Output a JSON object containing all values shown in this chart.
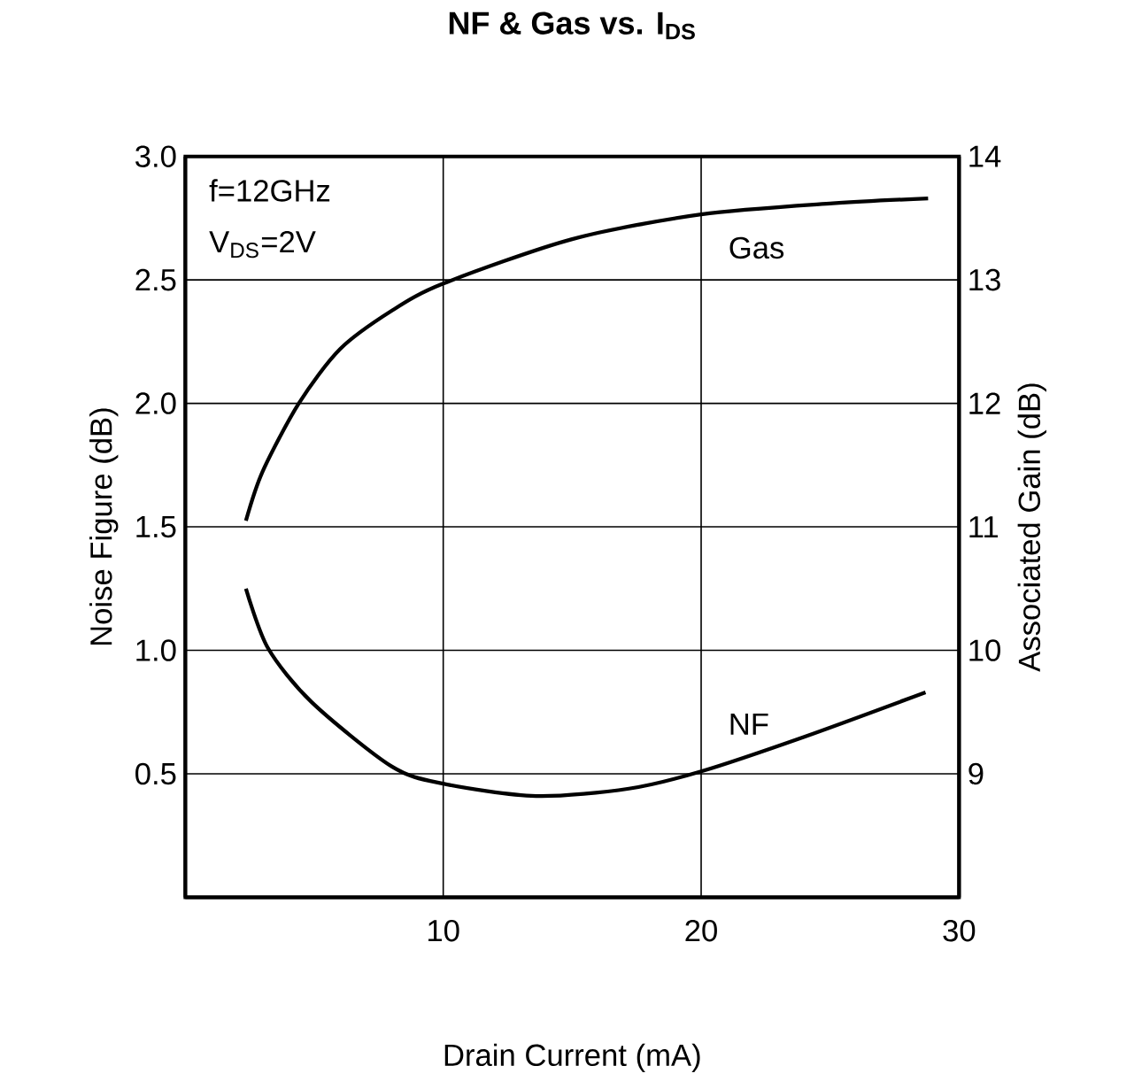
{
  "chart_data": {
    "type": "line",
    "title": "NF & Gas vs. I$_{DS}$",
    "xlabel": "Drain Current (mA)",
    "ylabel": "Noise Figure (dB)",
    "y2label": "Associated Gain (dB)",
    "annotations": [
      "f=12GHz",
      "V$_{DS}$=2V"
    ],
    "xlim": [
      0,
      30
    ],
    "xticks": [
      10,
      20,
      30
    ],
    "ylim": [
      0,
      3
    ],
    "yticks": [
      {
        "value": 0.5,
        "label": "0.5"
      },
      {
        "value": 1,
        "label": "1.0"
      },
      {
        "value": 1.5,
        "label": "1.5"
      },
      {
        "value": 2,
        "label": "2.0"
      },
      {
        "value": 2.5,
        "label": "2.5"
      },
      {
        "value": 3,
        "label": "3.0"
      }
    ],
    "y2lim": [
      8,
      14
    ],
    "y2ticks": [
      9,
      10,
      11,
      12,
      13,
      14
    ],
    "grid": true,
    "series": [
      {
        "name": "NF",
        "color": "#000000",
        "x": [
          2.35,
          3.2,
          4.9,
          8,
          10,
          13.6,
          17.2,
          20,
          24,
          28.7
        ],
        "values": [
          1.25,
          1.01,
          0.79,
          0.53,
          0.46,
          0.41,
          0.44,
          0.51,
          0.65,
          0.83
        ]
      },
      {
        "name": "Gas",
        "color": "#000000",
        "axis": "y2",
        "x": [
          2.35,
          3,
          4.4,
          6,
          8,
          10,
          15,
          20,
          25.1,
          28.8
        ],
        "values": [
          11.05,
          11.45,
          12.0,
          12.44,
          12.75,
          12.97,
          13.33,
          13.53,
          13.62,
          13.66
        ]
      }
    ]
  }
}
